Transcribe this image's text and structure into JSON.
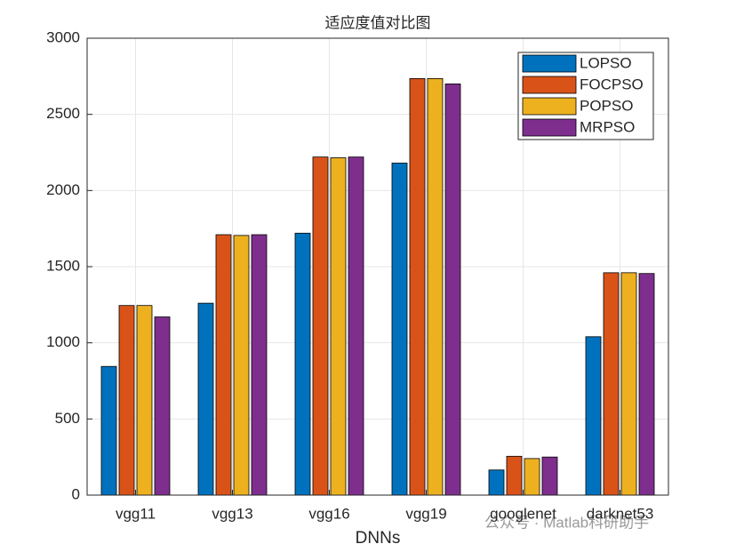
{
  "chart_data": {
    "type": "bar",
    "title": "适应度值对比图",
    "x_label": "DNNs",
    "categories": [
      "vgg11",
      "vgg13",
      "vgg16",
      "vgg19",
      "googlenet",
      "darknet53"
    ],
    "series": [
      {
        "name": "LOPSO",
        "color": "#0072BD",
        "values": [
          845,
          1260,
          1720,
          2180,
          165,
          1040
        ]
      },
      {
        "name": "FOCPSO",
        "color": "#D95319",
        "values": [
          1245,
          1710,
          2220,
          2735,
          255,
          1460
        ]
      },
      {
        "name": "POPSO",
        "color": "#EDB120",
        "values": [
          1245,
          1705,
          2215,
          2735,
          240,
          1460
        ]
      },
      {
        "name": "MRPSO",
        "color": "#7E2F8E",
        "values": [
          1170,
          1710,
          2220,
          2700,
          250,
          1455
        ]
      }
    ],
    "ylim": [
      0,
      3000
    ],
    "yticks": [
      0,
      500,
      1000,
      1500,
      2000,
      2500,
      3000
    ],
    "grid": true,
    "legend_position": "upper-right",
    "watermark": "公众号 · Matlab科研助手"
  }
}
